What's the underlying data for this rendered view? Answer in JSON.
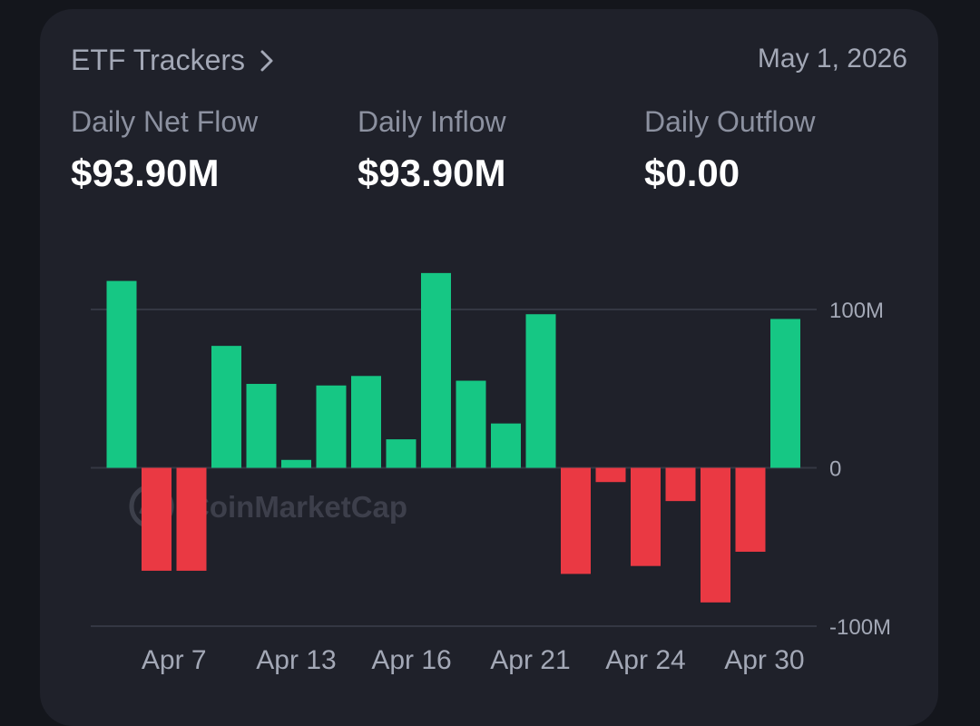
{
  "header": {
    "title": "ETF Trackers",
    "date": "May 1, 2026"
  },
  "stats": [
    {
      "label": "Daily Net Flow",
      "value": "$93.90M"
    },
    {
      "label": "Daily Inflow",
      "value": "$93.90M"
    },
    {
      "label": "Daily Outflow",
      "value": "$0.00"
    }
  ],
  "watermark": "CoinMarketCap",
  "colors": {
    "positive": "#16c784",
    "negative": "#ea3943",
    "grid": "#343743",
    "tick": "#a3a8b6"
  },
  "chart_data": {
    "type": "bar",
    "title": "",
    "xlabel": "",
    "ylabel": "",
    "ylim": [
      -100,
      100
    ],
    "yticks": [
      {
        "value": 100,
        "label": "100M"
      },
      {
        "value": 0,
        "label": "0"
      },
      {
        "value": -100,
        "label": "-100M"
      }
    ],
    "x_tick_labels": [
      {
        "index": 1.5,
        "label": "Apr 7"
      },
      {
        "index": 5,
        "label": "Apr 13"
      },
      {
        "index": 8.3,
        "label": "Apr 16"
      },
      {
        "index": 11.7,
        "label": "Apr 21"
      },
      {
        "index": 15,
        "label": "Apr 24"
      },
      {
        "index": 18.4,
        "label": "Apr 30"
      }
    ],
    "values": [
      118,
      -65,
      -65,
      77,
      53,
      5,
      52,
      58,
      18,
      123,
      55,
      28,
      97,
      -67,
      -9,
      -62,
      -21,
      -85,
      -53,
      94
    ],
    "grid": true,
    "unit": "M"
  }
}
